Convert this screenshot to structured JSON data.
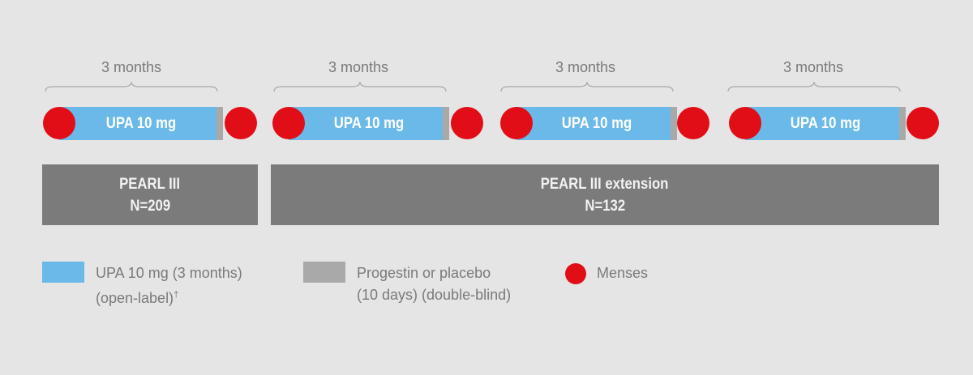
{
  "cycles": [
    {
      "duration": "3 months",
      "bar_label": "UPA 10 mg"
    },
    {
      "duration": "3 months",
      "bar_label": "UPA 10 mg"
    },
    {
      "duration": "3 months",
      "bar_label": "UPA 10 mg"
    },
    {
      "duration": "3 months",
      "bar_label": "UPA 10 mg"
    }
  ],
  "studies": [
    {
      "name": "PEARL III",
      "n": "N=209"
    },
    {
      "name": "PEARL III extension",
      "n": "N=132"
    }
  ],
  "legend": {
    "upa_line1": "UPA 10 mg (3 months)",
    "upa_line2": "(open-label)",
    "upa_mark": "†",
    "progestin_line1": "Progestin or placebo",
    "progestin_line2": "(10 days) (double-blind)",
    "menses": "Menses"
  },
  "colors": {
    "upa": "#6ab9e8",
    "progestin": "#a9a9a9",
    "menses": "#e10d17",
    "study_box": "#7b7b7b",
    "background": "#e5e5e5"
  }
}
